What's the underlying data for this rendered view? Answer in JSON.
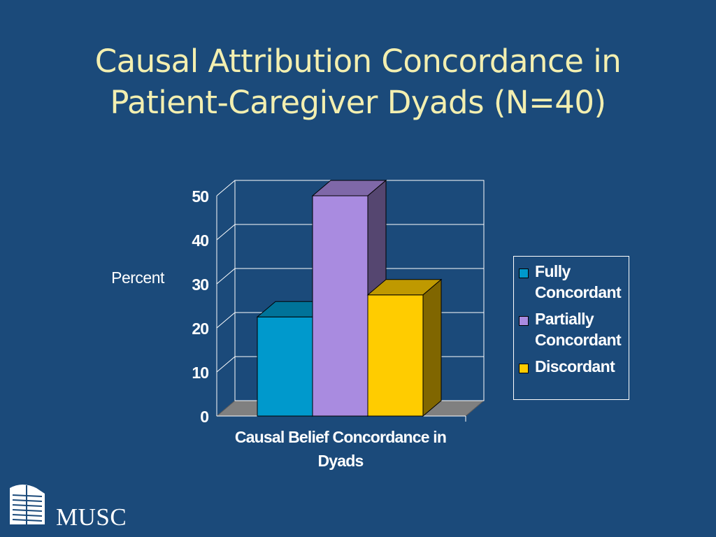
{
  "slide": {
    "title_line1": "Causal Attribution Concordance in",
    "title_line2": "Patient-Caregiver Dyads (N=40)"
  },
  "chart_data": {
    "type": "bar",
    "title": "",
    "xlabel": "Causal Belief Concordance in Dyads",
    "ylabel": "Percent",
    "ylim": [
      0,
      50
    ],
    "yticks": [
      0,
      10,
      20,
      30,
      40,
      50
    ],
    "grid": true,
    "legend_position": "right",
    "categories": [
      "Causal Belief Concordance in Dyads"
    ],
    "series": [
      {
        "name": "Fully Concordant",
        "values": [
          22.5
        ],
        "color": "#0099cc",
        "label_lines": "Fully\nConcordant"
      },
      {
        "name": "Partially Concordant",
        "values": [
          50
        ],
        "color": "#a98be0",
        "label_lines": "Partially\nConcordant"
      },
      {
        "name": "Discordant",
        "values": [
          27.5
        ],
        "color": "#ffcc00",
        "label_lines": "Discordant"
      }
    ]
  },
  "logo": {
    "text": "MUSC"
  }
}
